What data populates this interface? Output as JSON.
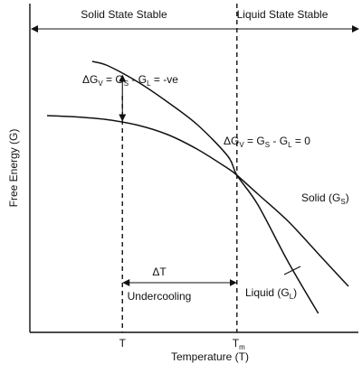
{
  "chart_data": {
    "type": "line",
    "title": "",
    "xlabel": "Temperature (T)",
    "ylabel": "Free Energy (G)",
    "x_ticks": [
      {
        "label": "T",
        "x": 0.25
      },
      {
        "label": "Tm",
        "label_main": "T",
        "label_sub": "m",
        "x": 0.63
      }
    ],
    "regions": {
      "solid": "Solid State Stable",
      "liquid": "Liquid State Stable"
    },
    "series": [
      {
        "name_main": "Solid (G",
        "name_sub": "S",
        "name_end": ")",
        "x": [
          0.0,
          0.1,
          0.2,
          0.3,
          0.4,
          0.5,
          0.6,
          0.63,
          0.7,
          0.8,
          0.9,
          1.0
        ],
        "y": [
          0.76,
          0.755,
          0.745,
          0.725,
          0.69,
          0.635,
          0.565,
          0.54,
          0.47,
          0.37,
          0.25,
          0.13
        ]
      },
      {
        "name_main": "Liquid (G",
        "name_sub": "L",
        "name_end": ")",
        "x": [
          0.15,
          0.2,
          0.3,
          0.4,
          0.5,
          0.6,
          0.63,
          0.7,
          0.8,
          0.9
        ],
        "y": [
          0.96,
          0.945,
          0.885,
          0.81,
          0.725,
          0.61,
          0.54,
          0.43,
          0.22,
          0.03
        ]
      }
    ],
    "annotations": {
      "dg_neg": {
        "main": "ΔG",
        "sub1": "V",
        "mid": " = G",
        "sub2": "S",
        "mid2": " - G",
        "sub3": "L",
        "end": " = -ve"
      },
      "dg_zero": {
        "main": "ΔG",
        "sub1": "V",
        "mid": " = G",
        "sub2": "S",
        "mid2": " - G",
        "sub3": "L",
        "end": " = 0"
      },
      "delta_t": "ΔT",
      "undercooling": "Undercooling"
    },
    "xlim": [
      0,
      1
    ],
    "ylim": [
      0,
      1
    ],
    "grid": false
  }
}
